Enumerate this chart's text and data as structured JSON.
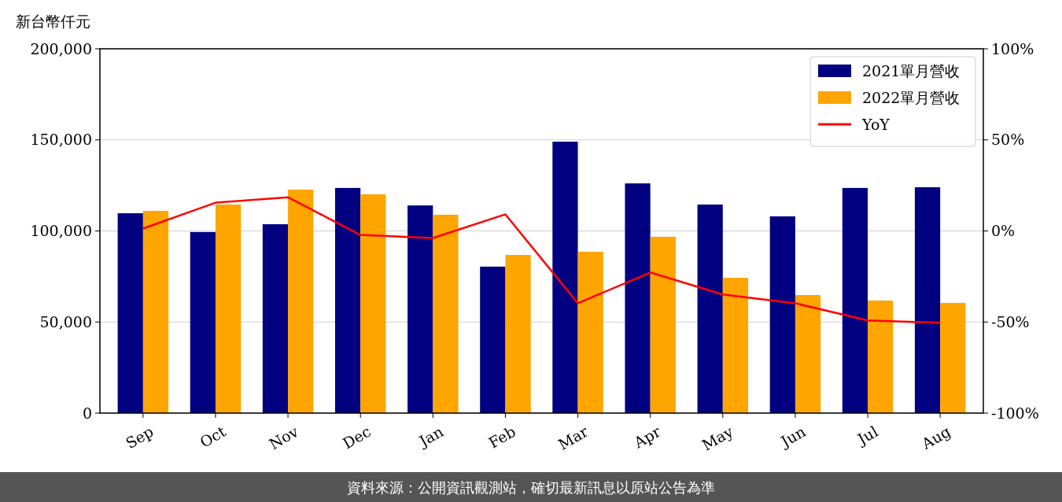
{
  "chart_data": {
    "type": "bar",
    "ylabel": "新台幣仟元",
    "categories": [
      "Sep",
      "Oct",
      "Nov",
      "Dec",
      "Jan",
      "Feb",
      "Mar",
      "Apr",
      "May",
      "Jun",
      "Jul",
      "Aug"
    ],
    "series": [
      {
        "name": "2021單月營收",
        "color": "#000080",
        "values": [
          109700,
          99400,
          103700,
          123600,
          114000,
          80400,
          149000,
          126100,
          114500,
          108000,
          123600,
          124000
        ]
      },
      {
        "name": "2022單月營收",
        "color": "#ffa500",
        "values": [
          111000,
          114500,
          122700,
          120100,
          108900,
          86800,
          88600,
          96800,
          74300,
          64800,
          61800,
          60500
        ]
      },
      {
        "name": "YoY",
        "type": "line",
        "axis": "y2",
        "color": "#ff0000",
        "values": [
          1.3,
          15.5,
          18.5,
          -2.2,
          -3.9,
          9.1,
          -39.7,
          -22.8,
          -34.9,
          -39.7,
          -49.1,
          -50.4
        ]
      }
    ],
    "ylim": [
      0,
      200000
    ],
    "yticks": [
      {
        "value": 0,
        "label": "0"
      },
      {
        "value": 50000,
        "label": "50,000"
      },
      {
        "value": 100000,
        "label": "100,000"
      },
      {
        "value": 150000,
        "label": "150,000"
      },
      {
        "value": 200000,
        "label": "200,000"
      }
    ],
    "y2lim": [
      -100,
      100
    ],
    "y2ticks": [
      {
        "value": -100,
        "label": "-100%"
      },
      {
        "value": -50,
        "label": "-50%"
      },
      {
        "value": 0,
        "label": "0%"
      },
      {
        "value": 50,
        "label": "50%"
      },
      {
        "value": 100,
        "label": "100%"
      }
    ],
    "grid": "y",
    "legend": "top right",
    "annotations": [
      "資料來源：公開資訊觀測站，確切最新訊息以原站公告為準"
    ]
  }
}
